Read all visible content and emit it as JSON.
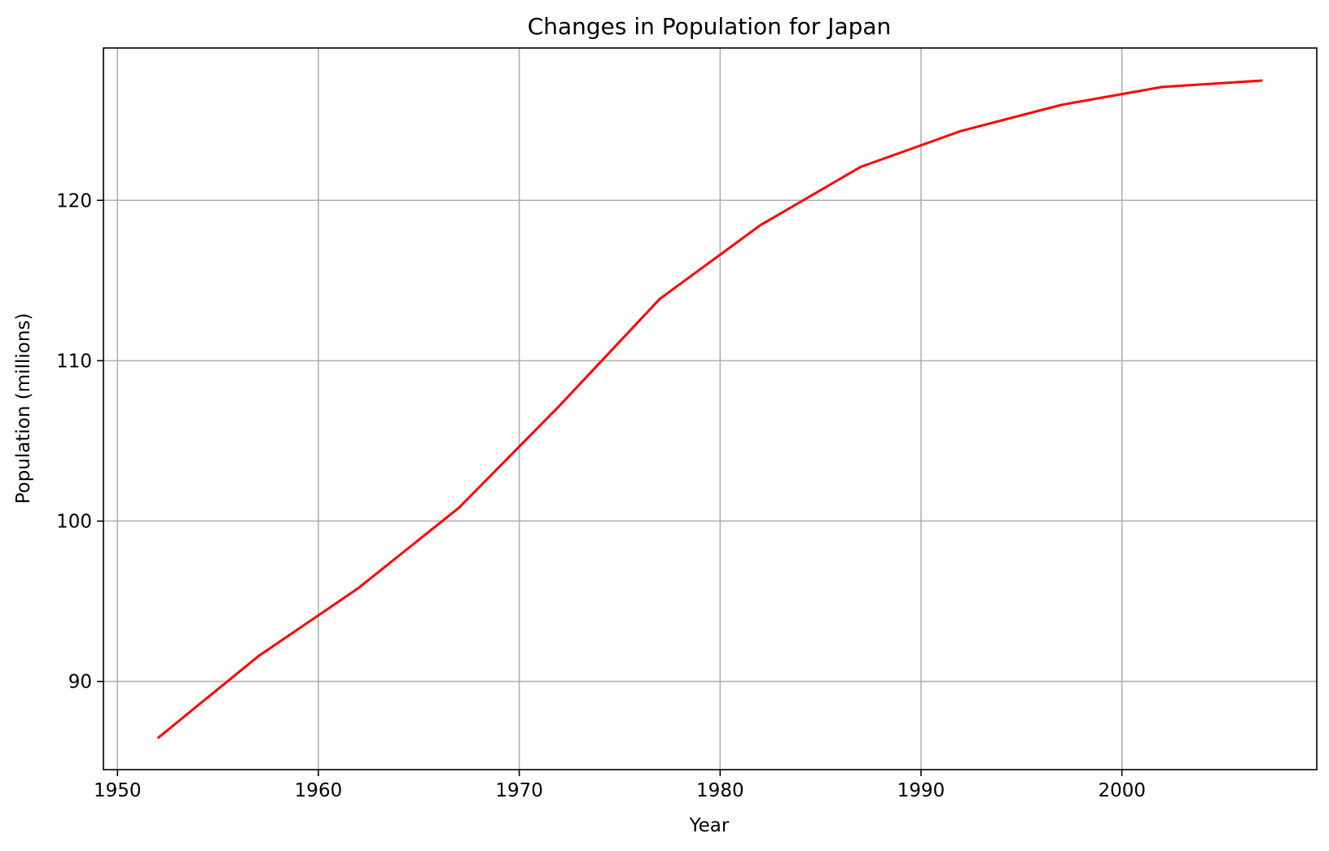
{
  "chart_data": {
    "type": "line",
    "title": "Changes in Population for Japan",
    "xlabel": "Year",
    "ylabel": "Population (millions)",
    "xlim": [
      1949.3,
      2009.7
    ],
    "ylim": [
      84.5,
      129.5
    ],
    "xticks": [
      1950,
      1960,
      1970,
      1980,
      1990,
      2000
    ],
    "yticks": [
      90,
      100,
      110,
      120
    ],
    "grid": true,
    "line_color": "#ff0000",
    "series": [
      {
        "x": [
          1952,
          1957,
          1962,
          1967,
          1972,
          1977,
          1982,
          1987,
          1992,
          1997,
          2002,
          2007
        ],
        "values": [
          86.46,
          91.56,
          95.83,
          100.83,
          107.19,
          113.86,
          118.45,
          122.09,
          124.33,
          125.96,
          127.07,
          127.47
        ]
      }
    ]
  }
}
